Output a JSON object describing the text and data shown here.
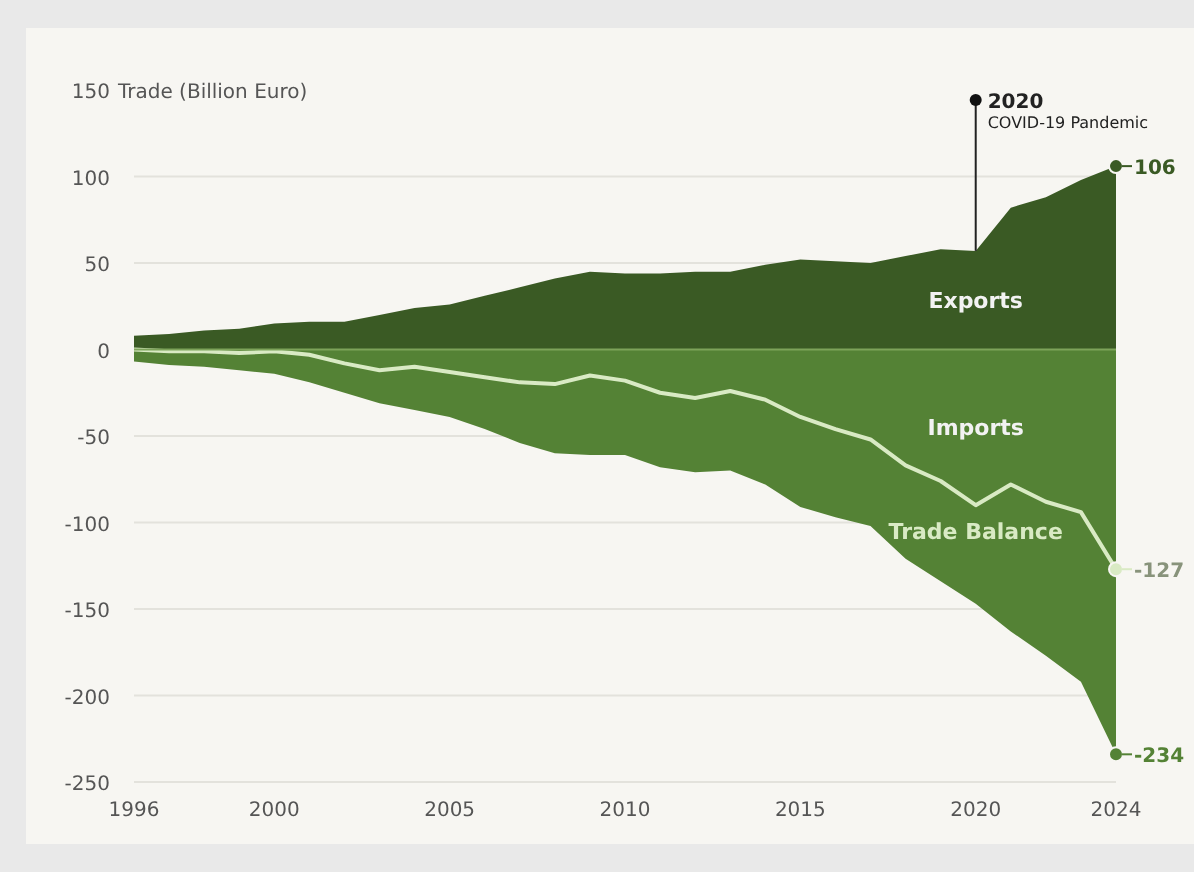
{
  "chart_data": {
    "type": "area",
    "ylabel": "Trade (Billion Euro)",
    "x": [
      1996,
      1997,
      1998,
      1999,
      2000,
      2001,
      2002,
      2003,
      2004,
      2005,
      2006,
      2007,
      2008,
      2009,
      2010,
      2011,
      2012,
      2013,
      2014,
      2015,
      2016,
      2017,
      2018,
      2019,
      2020,
      2021,
      2022,
      2023,
      2024
    ],
    "series": [
      {
        "name": "Exports",
        "color": "#3a5a24",
        "values": [
          8,
          9,
          11,
          12,
          15,
          16,
          16,
          20,
          24,
          26,
          31,
          36,
          41,
          45,
          44,
          44,
          45,
          45,
          49,
          52,
          51,
          50,
          54,
          58,
          57,
          82,
          88,
          98,
          106
        ],
        "value_labels": [
          null,
          null,
          null,
          null,
          null,
          null,
          null,
          null,
          null,
          null,
          null,
          null,
          null,
          null,
          null,
          null,
          null,
          null,
          null,
          null,
          null,
          null,
          null,
          null,
          null,
          null,
          null,
          null,
          "106"
        ]
      },
      {
        "name": "Imports",
        "type": "area",
        "color": "#548235",
        "values": [
          -7,
          -9,
          -10,
          -12,
          -14,
          -19,
          -25,
          -31,
          -35,
          -39,
          -46,
          -54,
          -60,
          -61,
          -61,
          -68,
          -71,
          -70,
          -78,
          -91,
          -97,
          -102,
          -121,
          -134,
          -147,
          -163,
          -177,
          -192,
          -234
        ],
        "value_labels": [
          null,
          null,
          null,
          null,
          null,
          null,
          null,
          null,
          null,
          null,
          null,
          null,
          null,
          null,
          null,
          null,
          null,
          null,
          null,
          null,
          null,
          null,
          null,
          null,
          null,
          null,
          null,
          null,
          "-234"
        ]
      },
      {
        "name": "Trade Balance",
        "type": "line",
        "color": "#d9eac4",
        "values": [
          0,
          -1,
          -1,
          -2,
          -1,
          -3,
          -8,
          -12,
          -10,
          -13,
          -16,
          -19,
          -20,
          -15,
          -18,
          -25,
          -28,
          -24,
          -29,
          -39,
          -46,
          -52,
          -67,
          -76,
          -90,
          -78,
          -88,
          -94,
          -127
        ],
        "value_labels": [
          null,
          null,
          null,
          null,
          null,
          null,
          null,
          null,
          null,
          null,
          null,
          null,
          null,
          null,
          null,
          null,
          null,
          null,
          null,
          null,
          null,
          null,
          null,
          null,
          null,
          null,
          null,
          null,
          "-127"
        ]
      }
    ],
    "xlim": [
      1996,
      2024
    ],
    "xticks": [
      1996,
      2000,
      2005,
      2010,
      2015,
      2020,
      2024
    ],
    "ylim": [
      -250,
      150
    ],
    "yticks": [
      -250,
      -200,
      -150,
      -100,
      -50,
      0,
      50,
      100,
      150
    ],
    "grid": "y",
    "ref_lines": [
      {
        "axis": "y",
        "value": 0,
        "color": "#7da35a"
      }
    ],
    "annotations": [
      {
        "text": "2020",
        "x": 2020,
        "y": 57
      },
      "COVID-19 Pandemic"
    ]
  }
}
